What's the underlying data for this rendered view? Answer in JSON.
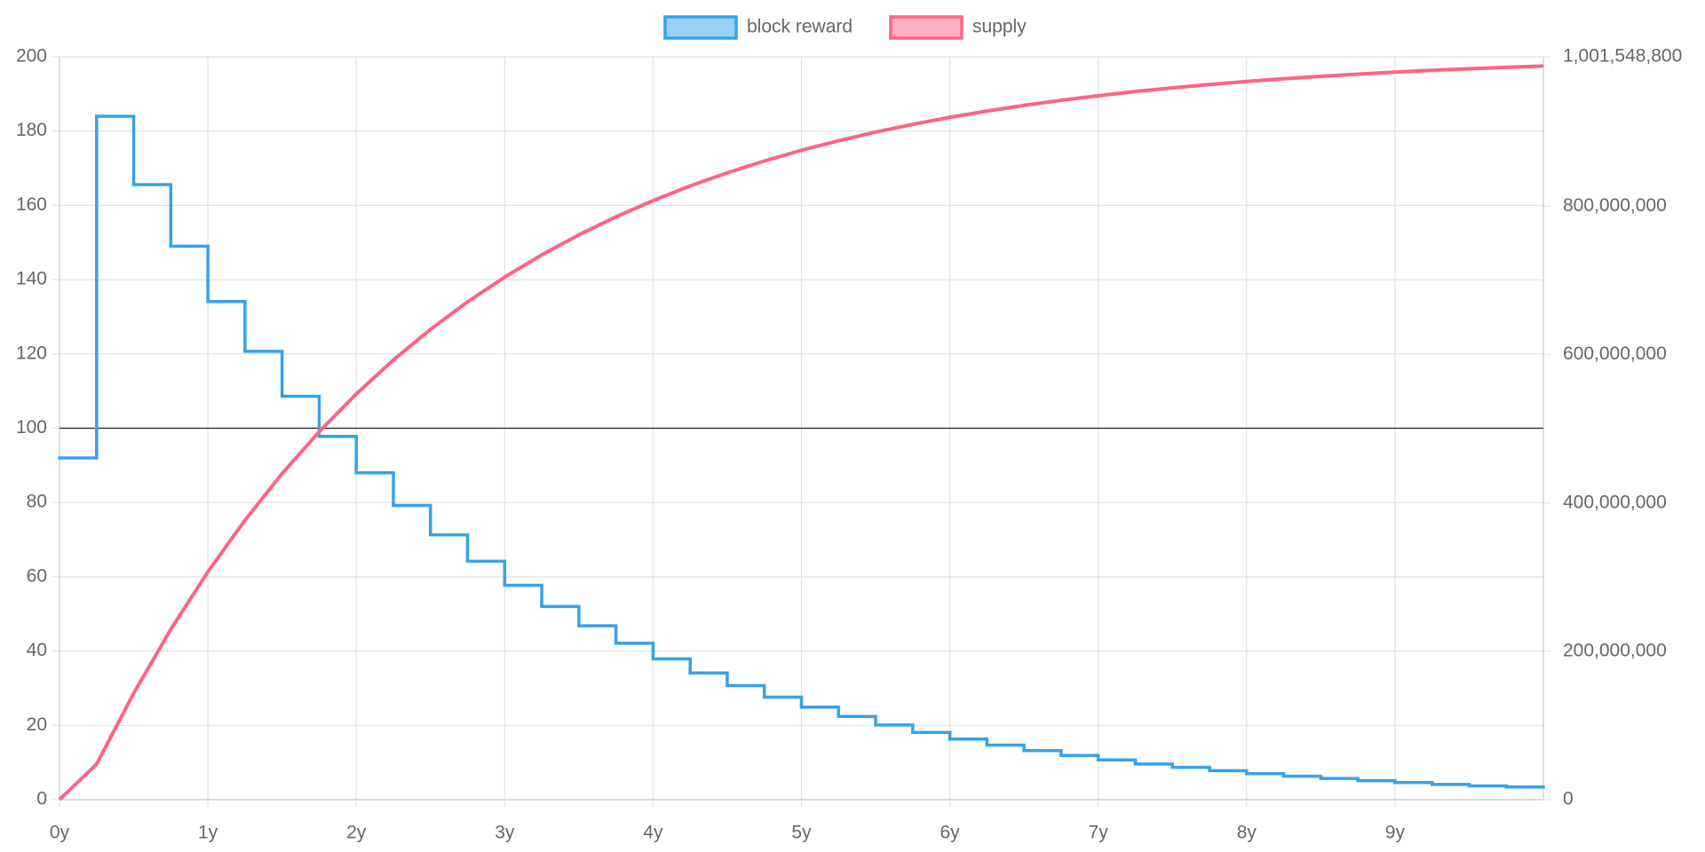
{
  "chart_data": {
    "type": "line",
    "series": [
      {
        "name": "block reward",
        "color": "#36a2eb",
        "step": true,
        "axis": "y",
        "x": [
          0,
          0.25,
          0.5,
          0.75,
          1,
          1.25,
          1.5,
          1.75,
          2,
          2.25,
          2.5,
          2.75,
          3,
          3.25,
          3.5,
          3.75,
          4,
          4.25,
          4.5,
          4.75,
          5,
          5.25,
          5.5,
          5.75,
          6,
          6.25,
          6.5,
          6.75,
          7,
          7.25,
          7.5,
          7.75,
          8,
          8.25,
          8.5,
          8.75,
          9,
          9.25,
          9.5,
          9.75
        ],
        "values": [
          92,
          184,
          165.6,
          149,
          134.1,
          120.7,
          108.6,
          97.8,
          88,
          79.2,
          71.3,
          64.2,
          57.7,
          52,
          46.8,
          42.1,
          37.9,
          34.1,
          30.7,
          27.6,
          24.9,
          22.4,
          20.1,
          18.1,
          16.3,
          14.7,
          13.2,
          11.9,
          10.7,
          9.6,
          8.7,
          7.8,
          7.0,
          6.3,
          5.7,
          5.1,
          4.6,
          4.1,
          3.7,
          3.4
        ]
      },
      {
        "name": "supply",
        "color": "#ff6384",
        "step": false,
        "axis": "y2",
        "x": [
          0,
          0.25,
          0.5,
          0.75,
          1,
          1.25,
          1.5,
          1.75,
          2,
          2.25,
          2.5,
          2.75,
          3,
          3.25,
          3.5,
          3.75,
          4,
          4.25,
          4.5,
          4.75,
          5,
          5.25,
          5.5,
          5.75,
          6,
          6.25,
          6.5,
          6.75,
          7,
          7.25,
          7.5,
          7.75,
          8,
          8.25,
          8.5,
          8.75,
          9,
          9.25,
          9.5,
          9.75,
          10
        ],
        "values": [
          0,
          47800000,
          143500000,
          229600000,
          307100000,
          376800000,
          439600000,
          496100000,
          547000000,
          592800000,
          634000000,
          671100000,
          704500000,
          734500000,
          761500000,
          785800000,
          807700000,
          827400000,
          845100000,
          861100000,
          875500000,
          888400000,
          900000000,
          910500000,
          919900000,
          928400000,
          936000000,
          942900000,
          949100000,
          954700000,
          959700000,
          964200000,
          968300000,
          971900000,
          975200000,
          978200000,
          980900000,
          983300000,
          985400000,
          987300000,
          989100000
        ]
      }
    ],
    "xlim": [
      0,
      10
    ],
    "xticks": [
      {
        "value": 0,
        "label": "0y"
      },
      {
        "value": 1,
        "label": "1y"
      },
      {
        "value": 2,
        "label": "2y"
      },
      {
        "value": 3,
        "label": "3y"
      },
      {
        "value": 4,
        "label": "4y"
      },
      {
        "value": 5,
        "label": "5y"
      },
      {
        "value": 6,
        "label": "6y"
      },
      {
        "value": 7,
        "label": "7y"
      },
      {
        "value": 8,
        "label": "8y"
      },
      {
        "value": 9,
        "label": "9y"
      }
    ],
    "ylim": [
      0,
      200
    ],
    "yticks": [
      0,
      20,
      40,
      60,
      80,
      100,
      120,
      140,
      160,
      180,
      200
    ],
    "y2lim": [
      0,
      1001548800
    ],
    "y2ticks": [
      0,
      {
        "value": 200000000,
        "label": "200,000,000"
      },
      {
        "value": 400000000,
        "label": "400,000,000"
      },
      {
        "value": 600000000,
        "label": "600,000,000"
      },
      {
        "value": 800000000,
        "label": "800,000,000"
      },
      {
        "value": 1001548800,
        "label": "1,001,548,800"
      }
    ],
    "hline": 100,
    "grid": true,
    "legend": "top"
  }
}
